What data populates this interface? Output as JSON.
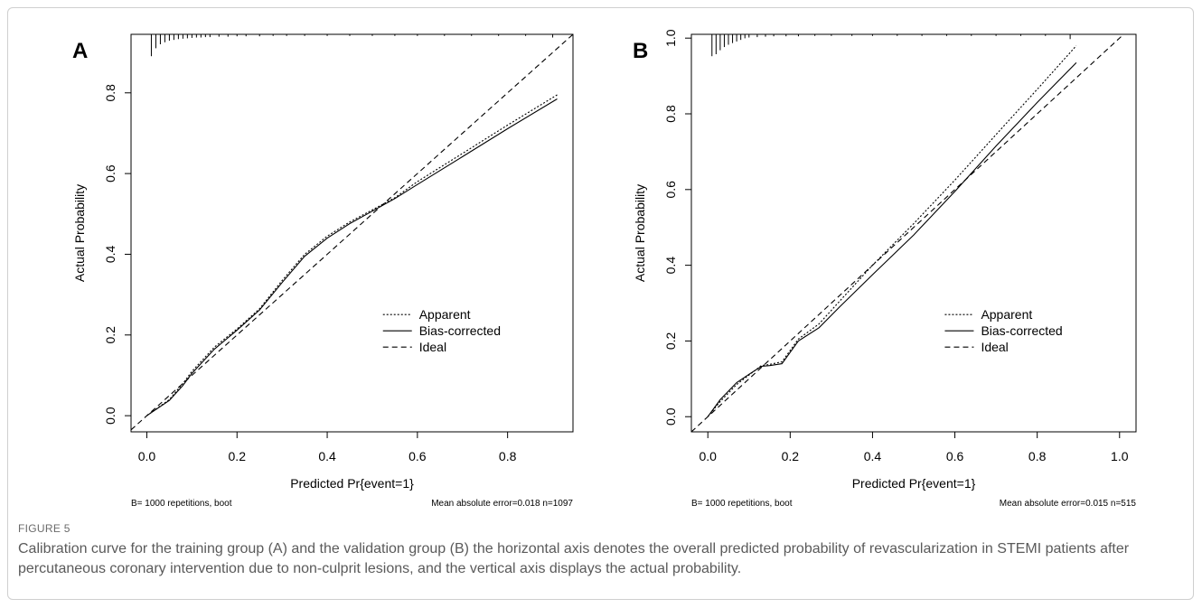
{
  "caption": {
    "label": "FIGURE 5",
    "text": "Calibration curve for the training group (A) and the validation group (B) the horizontal axis denotes the overall predicted probability of revascularization in STEMI patients after percutaneous coronary intervention due to non-culprit lesions, and the vertical axis displays the actual probability."
  },
  "chart_data": [
    {
      "type": "line",
      "panel_label": "A",
      "xlabel": "Predicted Pr{event=1}",
      "ylabel": "Actual Probability",
      "xlim": [
        -0.035,
        0.945
      ],
      "ylim": [
        -0.04,
        0.945
      ],
      "xticks": [
        0.0,
        0.2,
        0.4,
        0.6,
        0.8
      ],
      "xtick_labels": [
        "0.0",
        "0.2",
        "0.4",
        "0.6",
        "0.8"
      ],
      "yticks": [
        0.0,
        0.2,
        0.4,
        0.6,
        0.8
      ],
      "ytick_labels": [
        "0.0",
        "0.2",
        "0.4",
        "0.6",
        "0.8"
      ],
      "grid": false,
      "legend_placement": "lower-right",
      "footnote_left": "B= 1000 repetitions, boot",
      "footnote_right": "Mean absolute error=0.018 n=1097",
      "series": [
        {
          "name": "Apparent",
          "style": "dotted",
          "x": [
            0.0,
            0.05,
            0.08,
            0.1,
            0.15,
            0.2,
            0.25,
            0.3,
            0.35,
            0.4,
            0.45,
            0.5,
            0.55,
            0.6,
            0.7,
            0.8,
            0.91
          ],
          "y": [
            0.0,
            0.04,
            0.08,
            0.11,
            0.17,
            0.215,
            0.265,
            0.335,
            0.4,
            0.445,
            0.48,
            0.51,
            0.54,
            0.58,
            0.65,
            0.72,
            0.795
          ]
        },
        {
          "name": "Bias-corrected",
          "style": "solid",
          "x": [
            0.0,
            0.05,
            0.08,
            0.1,
            0.15,
            0.2,
            0.25,
            0.3,
            0.35,
            0.4,
            0.45,
            0.5,
            0.55,
            0.6,
            0.7,
            0.8,
            0.91
          ],
          "y": [
            0.0,
            0.038,
            0.075,
            0.105,
            0.165,
            0.212,
            0.262,
            0.33,
            0.395,
            0.44,
            0.476,
            0.507,
            0.538,
            0.573,
            0.642,
            0.711,
            0.785
          ]
        },
        {
          "name": "Ideal",
          "style": "dashed",
          "x": [
            -0.035,
            0.945
          ],
          "y": [
            -0.035,
            0.945
          ]
        }
      ],
      "rug_x": [
        0.01,
        0.02,
        0.03,
        0.04,
        0.05,
        0.06,
        0.07,
        0.08,
        0.09,
        0.1,
        0.11,
        0.12,
        0.13,
        0.14,
        0.16,
        0.18,
        0.2,
        0.22,
        0.25,
        0.28,
        0.31,
        0.35,
        0.4,
        0.45,
        0.5,
        0.55,
        0.6,
        0.66,
        0.72,
        0.78,
        0.84,
        0.9
      ],
      "rug_h": [
        0.055,
        0.035,
        0.025,
        0.02,
        0.016,
        0.014,
        0.012,
        0.011,
        0.01,
        0.009,
        0.008,
        0.008,
        0.007,
        0.007,
        0.006,
        0.006,
        0.005,
        0.005,
        0.005,
        0.004,
        0.004,
        0.004,
        0.004,
        0.004,
        0.004,
        0.004,
        0.004,
        0.004,
        0.004,
        0.004,
        0.004,
        0.008
      ]
    },
    {
      "type": "line",
      "panel_label": "B",
      "xlabel": "Predicted Pr{event=1}",
      "ylabel": "Actual Probability",
      "xlim": [
        -0.04,
        1.04
      ],
      "ylim": [
        -0.04,
        1.01
      ],
      "xticks": [
        0.0,
        0.2,
        0.4,
        0.6,
        0.8,
        1.0
      ],
      "xtick_labels": [
        "0.0",
        "0.2",
        "0.4",
        "0.6",
        "0.8",
        "1.0"
      ],
      "yticks": [
        0.0,
        0.2,
        0.4,
        0.6,
        0.8,
        1.0
      ],
      "ytick_labels": [
        "0.0",
        "0.2",
        "0.4",
        "0.6",
        "0.8",
        "1.0"
      ],
      "grid": false,
      "legend_placement": "lower-right",
      "footnote_left": "B= 1000 repetitions, boot",
      "footnote_right": "Mean absolute error=0.015 n=515",
      "series": [
        {
          "name": "Apparent",
          "style": "dotted",
          "x": [
            0.0,
            0.03,
            0.07,
            0.1,
            0.13,
            0.15,
            0.18,
            0.22,
            0.27,
            0.32,
            0.4,
            0.5,
            0.6,
            0.7,
            0.8,
            0.895
          ],
          "y": [
            0.0,
            0.04,
            0.085,
            0.11,
            0.135,
            0.138,
            0.145,
            0.205,
            0.245,
            0.305,
            0.4,
            0.51,
            0.625,
            0.745,
            0.865,
            0.98
          ]
        },
        {
          "name": "Bias-corrected",
          "style": "solid",
          "x": [
            0.0,
            0.03,
            0.07,
            0.1,
            0.13,
            0.15,
            0.18,
            0.22,
            0.27,
            0.32,
            0.4,
            0.5,
            0.6,
            0.7,
            0.8,
            0.895
          ],
          "y": [
            0.0,
            0.045,
            0.09,
            0.112,
            0.133,
            0.135,
            0.14,
            0.2,
            0.235,
            0.29,
            0.375,
            0.48,
            0.595,
            0.715,
            0.83,
            0.935
          ]
        },
        {
          "name": "Ideal",
          "style": "dashed",
          "x": [
            -0.04,
            1.01
          ],
          "y": [
            -0.04,
            1.01
          ]
        }
      ],
      "rug_x": [
        0.01,
        0.02,
        0.03,
        0.04,
        0.05,
        0.06,
        0.07,
        0.08,
        0.09,
        0.1,
        0.12,
        0.14,
        0.16,
        0.19,
        0.22,
        0.26,
        0.3,
        0.35,
        0.4,
        0.46,
        0.52,
        0.58,
        0.64,
        0.7,
        0.76,
        0.82,
        0.88
      ],
      "rug_h": [
        0.055,
        0.05,
        0.04,
        0.032,
        0.026,
        0.022,
        0.018,
        0.014,
        0.01,
        0.008,
        0.007,
        0.006,
        0.005,
        0.005,
        0.005,
        0.004,
        0.004,
        0.004,
        0.004,
        0.004,
        0.004,
        0.004,
        0.004,
        0.004,
        0.004,
        0.004,
        0.012
      ]
    }
  ]
}
